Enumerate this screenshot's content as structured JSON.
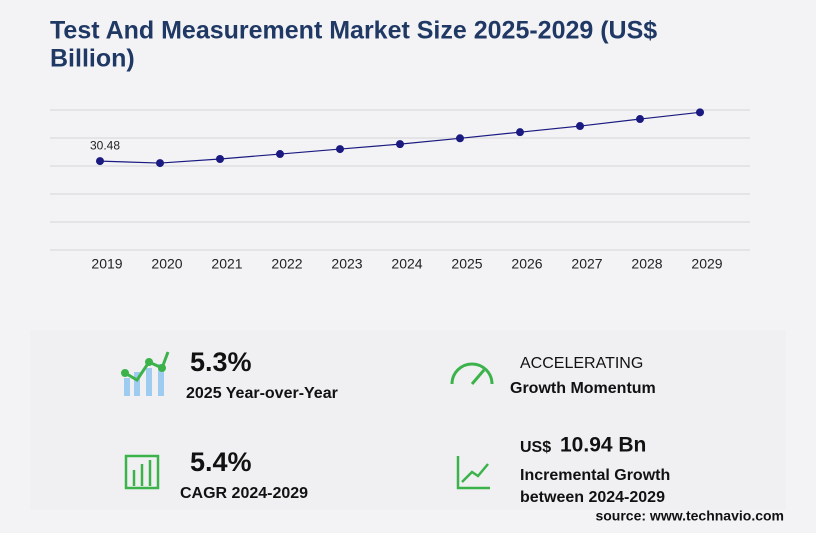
{
  "chart_data": {
    "type": "line",
    "title": "Test And Measurement Market Size 2025-2029 (US$",
    "title_line2": "Billion)",
    "categories": [
      "2019",
      "2020",
      "2021",
      "2022",
      "2023",
      "2024",
      "2025",
      "2026",
      "2027",
      "2028",
      "2029"
    ],
    "series": [
      {
        "name": "Market Size",
        "color": "#1a1a80",
        "values": [
          30.48,
          29.8,
          31.2,
          32.9,
          34.6,
          36.3,
          38.3,
          40.4,
          42.5,
          44.9,
          47.2
        ]
      }
    ],
    "ylim": [
      0,
      48
    ],
    "yticks": [
      0,
      9.6,
      19.2,
      28.8,
      38.4,
      48
    ],
    "grid": true
  },
  "stats": [
    {
      "value": "5.3%",
      "label": "2025 Year-over-Year"
    },
    {
      "value": "ACCELERATING",
      "label": "Growth Momentum"
    },
    {
      "value": "5.4%",
      "label": "CAGR 2024-2029"
    },
    {
      "prefix": "US$",
      "value": "10.94 Bn",
      "label": "Incremental Growth",
      "label2": "between 2024-2029"
    }
  ],
  "source": "source: www.technavio.com"
}
